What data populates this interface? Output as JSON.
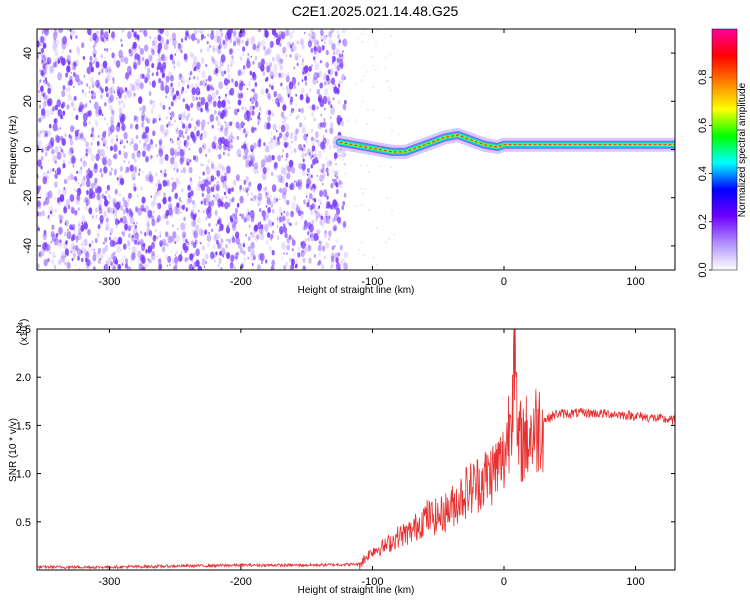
{
  "title": "C2E1.2025.021.14.48.G25",
  "chart_data": [
    {
      "type": "heatmap",
      "xlabel": "Height of straight line (km)",
      "ylabel": "Frequency (Hz)",
      "xlim": [
        -355,
        130
      ],
      "ylim": [
        -50,
        50
      ],
      "xticks": [
        -300,
        -200,
        -100,
        0,
        100
      ],
      "yticks": [
        -40,
        -20,
        0,
        20,
        40
      ],
      "noise_region_x": [
        -355,
        -120
      ],
      "signal_track": {
        "x": [
          -125,
          -115,
          -105,
          -95,
          -85,
          -75,
          -65,
          -55,
          -45,
          -35,
          -25,
          -15,
          -5,
          0,
          10,
          20,
          40,
          60,
          80,
          100,
          130
        ],
        "y": [
          3,
          2,
          1,
          0,
          -1,
          -1,
          1,
          3,
          5,
          6,
          4,
          2,
          1,
          2,
          2,
          2,
          2,
          2,
          2,
          2,
          2
        ]
      },
      "colorbar": {
        "label": "Normalized spectral amplitude",
        "ticks": [
          0.0,
          0.2,
          0.4,
          0.6,
          0.8
        ],
        "range": [
          0,
          1
        ],
        "colors": [
          "#ffffff",
          "#b090ff",
          "#7000ff",
          "#0000ff",
          "#00ffff",
          "#00ff00",
          "#ffff00",
          "#ff8000",
          "#ff0000",
          "#ff00a0"
        ]
      },
      "grid": false,
      "colors": {
        "noise": "#7a3cff",
        "track": "#00e5c8",
        "track_core": "#ff3030"
      }
    },
    {
      "type": "line",
      "xlabel": "Height of straight line (km)",
      "ylabel": "SNR (10 * v/v)",
      "yscale_label": "(x10",
      "yscale_exp": "4",
      "xlim": [
        -355,
        130
      ],
      "ylim": [
        0,
        2.5
      ],
      "xticks": [
        -300,
        -200,
        -100,
        0,
        100
      ],
      "yticks": [
        0.5,
        1.0,
        1.5,
        2.0,
        2.5
      ],
      "series": [
        {
          "color": "#e83030",
          "x": [
            -355,
            -300,
            -250,
            -200,
            -150,
            -110,
            -100,
            -90,
            -80,
            -70,
            -60,
            -50,
            -40,
            -30,
            -20,
            -10,
            0,
            5,
            8,
            10,
            20,
            30,
            40,
            60,
            80,
            100,
            130
          ],
          "y": [
            0.03,
            0.03,
            0.04,
            0.05,
            0.05,
            0.06,
            0.2,
            0.25,
            0.35,
            0.4,
            0.55,
            0.55,
            0.65,
            0.8,
            0.9,
            1.0,
            1.15,
            1.6,
            2.5,
            1.3,
            1.4,
            1.55,
            1.62,
            1.63,
            1.62,
            1.6,
            1.55
          ]
        }
      ],
      "grid": false
    }
  ]
}
